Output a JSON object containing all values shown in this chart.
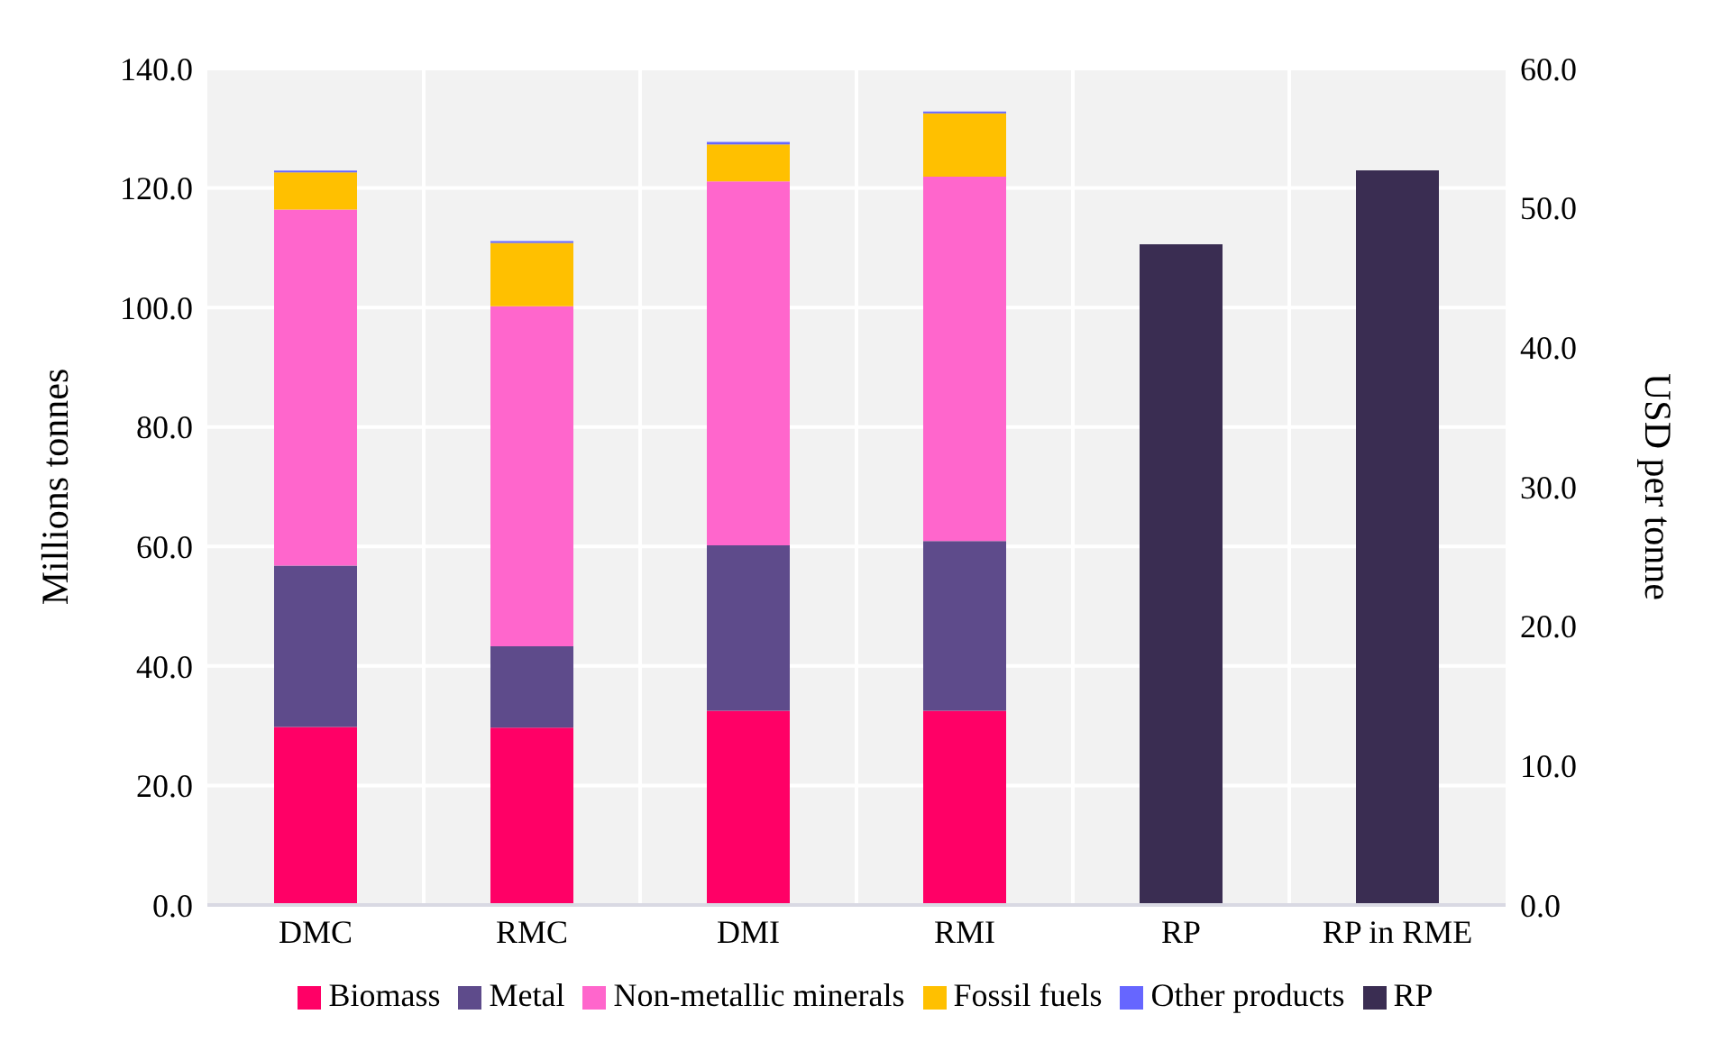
{
  "chart_data": {
    "type": "bar",
    "stacked": true,
    "categories": [
      "DMC",
      "RMC",
      "DMI",
      "RMI",
      "RP",
      "RP in RME"
    ],
    "ylabel": "Millions tonnes",
    "y2label": "USD per tonne",
    "ylim": [
      0,
      140
    ],
    "yticks": [
      {
        "value": 0,
        "label": "0.0"
      },
      {
        "value": 20,
        "label": "20.0"
      },
      {
        "value": 40,
        "label": "40.0"
      },
      {
        "value": 60,
        "label": "60.0"
      },
      {
        "value": 80,
        "label": "80.0"
      },
      {
        "value": 100,
        "label": "100.0"
      },
      {
        "value": 120,
        "label": "120.0"
      },
      {
        "value": 140,
        "label": "140.0"
      }
    ],
    "y2lim": [
      0,
      60
    ],
    "y2ticks": [
      {
        "value": 0,
        "label": "0.0"
      },
      {
        "value": 10,
        "label": "10.0"
      },
      {
        "value": 20,
        "label": "20.0"
      },
      {
        "value": 30,
        "label": "30.0"
      },
      {
        "value": 40,
        "label": "40.0"
      },
      {
        "value": 50,
        "label": "50.0"
      },
      {
        "value": 60,
        "label": "60.0"
      }
    ],
    "grid": true,
    "legend": "bottom",
    "series": [
      {
        "name": "Biomass",
        "color": "#ff0066",
        "values": [
          29.8,
          29.7,
          32.5,
          32.5,
          null,
          null
        ]
      },
      {
        "name": "Metal",
        "color": "#5e4b8b",
        "values": [
          27.0,
          13.6,
          27.7,
          28.4,
          null,
          null
        ]
      },
      {
        "name": "Non-metallic minerals",
        "color": "#ff66cc",
        "values": [
          59.6,
          56.9,
          60.9,
          61.0,
          null,
          null
        ]
      },
      {
        "name": "Fossil fuels",
        "color": "#ffc000",
        "values": [
          6.2,
          10.6,
          6.2,
          10.6,
          null,
          null
        ]
      },
      {
        "name": "Other products",
        "color": "#6666ff",
        "values": [
          0.3,
          0.3,
          0.4,
          0.3,
          null,
          null
        ]
      },
      {
        "name": "RP",
        "color": "#3a2d52",
        "axis": "y2",
        "values": [
          null,
          null,
          null,
          null,
          47.4,
          52.7
        ]
      }
    ]
  }
}
